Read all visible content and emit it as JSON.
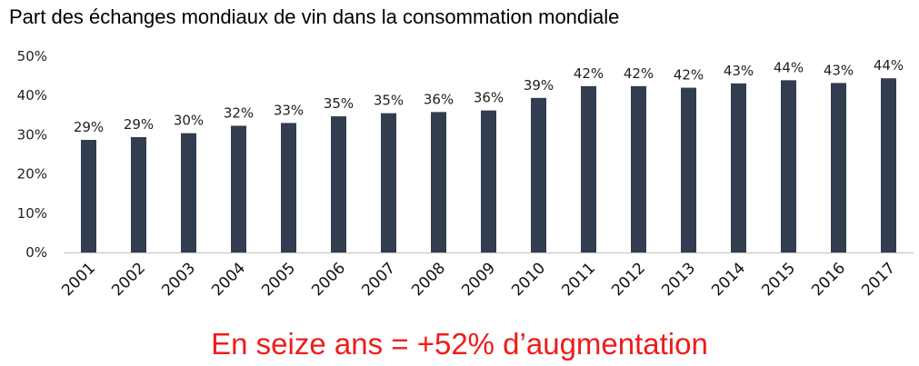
{
  "title": "Part des échanges mondiaux de vin dans la consommation mondiale",
  "annotation": "En seize ans = +52% d’augmentation",
  "colors": {
    "bar": "#323d4f",
    "annotation": "#ee1c1c",
    "axis": "#bfbfbf"
  },
  "chart_data": {
    "type": "bar",
    "title": "Part des échanges mondiaux de vin dans la consommation mondiale",
    "xlabel": "",
    "ylabel": "",
    "categories": [
      "2001",
      "2002",
      "2003",
      "2004",
      "2005",
      "2006",
      "2007",
      "2008",
      "2009",
      "2010",
      "2011",
      "2012",
      "2013",
      "2014",
      "2015",
      "2016",
      "2017"
    ],
    "values": [
      28.7,
      29.4,
      30.4,
      32.3,
      33.0,
      34.7,
      35.5,
      35.8,
      36.2,
      39.4,
      42.4,
      42.4,
      42.0,
      43.1,
      43.9,
      43.2,
      44.4
    ],
    "data_labels": [
      "29%",
      "29%",
      "30%",
      "32%",
      "33%",
      "35%",
      "35%",
      "36%",
      "36%",
      "39%",
      "42%",
      "42%",
      "42%",
      "43%",
      "44%",
      "43%",
      "44%"
    ],
    "ylim": [
      0,
      50
    ],
    "yticks": [
      0,
      10,
      20,
      30,
      40,
      50
    ],
    "ytick_labels": [
      "0%",
      "10%",
      "20%",
      "30%",
      "40%",
      "50%"
    ],
    "grid": false,
    "legend": "none"
  }
}
